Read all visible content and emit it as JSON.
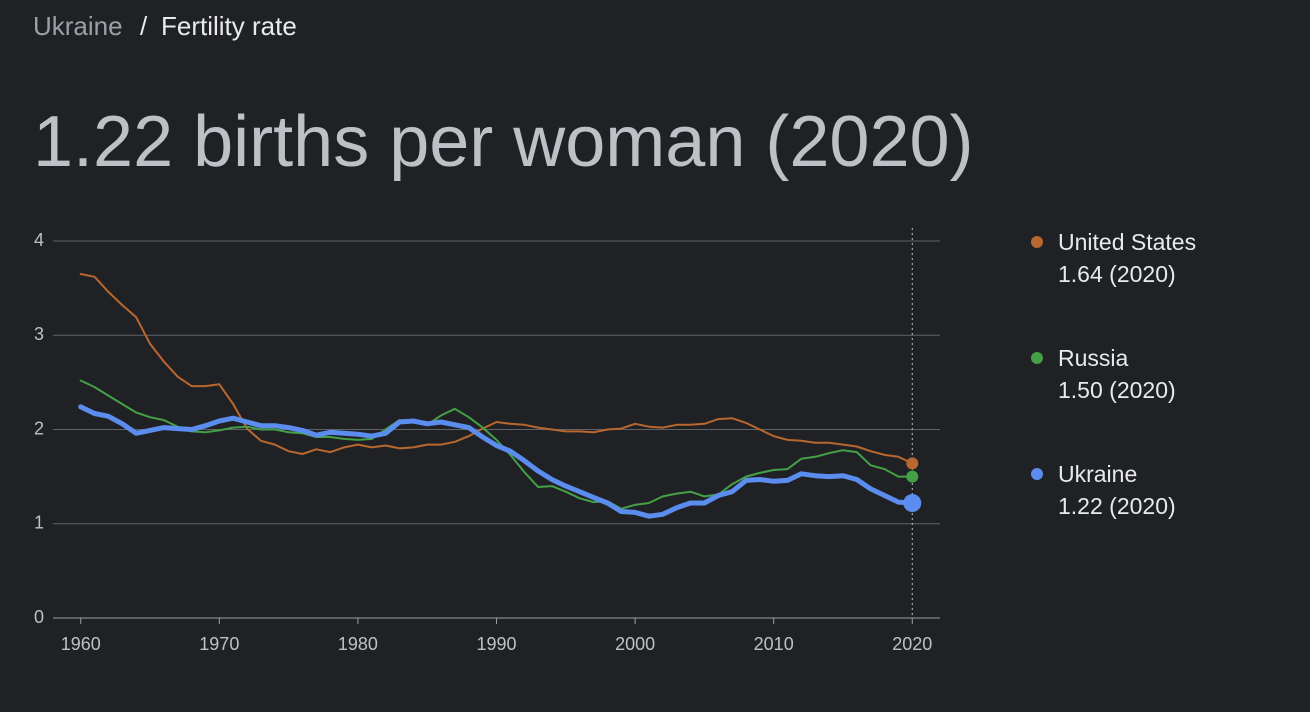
{
  "breadcrumb": [
    "Ukraine",
    "Fertility rate"
  ],
  "breadcrumb_separator": "/",
  "chart_data": {
    "type": "line",
    "title": "1.22 births per woman (2020)",
    "x": [
      1960,
      1961,
      1962,
      1963,
      1964,
      1965,
      1966,
      1967,
      1968,
      1969,
      1970,
      1971,
      1972,
      1973,
      1974,
      1975,
      1976,
      1977,
      1978,
      1979,
      1980,
      1981,
      1982,
      1983,
      1984,
      1985,
      1986,
      1987,
      1988,
      1989,
      1990,
      1991,
      1992,
      1993,
      1994,
      1995,
      1996,
      1997,
      1998,
      1999,
      2000,
      2001,
      2002,
      2003,
      2004,
      2005,
      2006,
      2007,
      2008,
      2009,
      2010,
      2011,
      2012,
      2013,
      2014,
      2015,
      2016,
      2017,
      2018,
      2019,
      2020
    ],
    "series": [
      {
        "name": "United States",
        "color": "#b8672e",
        "width": 2,
        "legend_label": "1.64 (2020)",
        "values": [
          3.65,
          3.62,
          3.46,
          3.32,
          3.19,
          2.91,
          2.72,
          2.56,
          2.46,
          2.46,
          2.48,
          2.27,
          2.01,
          1.88,
          1.84,
          1.77,
          1.74,
          1.79,
          1.76,
          1.81,
          1.84,
          1.81,
          1.83,
          1.8,
          1.81,
          1.84,
          1.84,
          1.87,
          1.93,
          2.01,
          2.08,
          2.06,
          2.05,
          2.02,
          2.0,
          1.98,
          1.98,
          1.97,
          2.0,
          2.01,
          2.06,
          2.03,
          2.02,
          2.05,
          2.05,
          2.06,
          2.11,
          2.12,
          2.07,
          2.0,
          1.93,
          1.89,
          1.88,
          1.86,
          1.86,
          1.84,
          1.82,
          1.77,
          1.73,
          1.71,
          1.64
        ]
      },
      {
        "name": "Russia",
        "color": "#43a047",
        "width": 2,
        "legend_label": "1.50 (2020)",
        "values": [
          2.52,
          2.45,
          2.36,
          2.27,
          2.18,
          2.13,
          2.1,
          2.03,
          1.98,
          1.97,
          1.99,
          2.02,
          2.03,
          2.0,
          2.0,
          1.97,
          1.96,
          1.92,
          1.92,
          1.9,
          1.89,
          1.9,
          2.0,
          2.1,
          2.09,
          2.05,
          2.15,
          2.22,
          2.13,
          2.02,
          1.89,
          1.73,
          1.55,
          1.39,
          1.4,
          1.34,
          1.27,
          1.23,
          1.24,
          1.16,
          1.2,
          1.22,
          1.29,
          1.32,
          1.34,
          1.29,
          1.31,
          1.42,
          1.5,
          1.54,
          1.57,
          1.58,
          1.69,
          1.71,
          1.75,
          1.78,
          1.76,
          1.62,
          1.58,
          1.5,
          1.5
        ]
      },
      {
        "name": "Ukraine",
        "color": "#5b8def",
        "width": 5,
        "legend_label": "1.22 (2020)",
        "values": [
          2.24,
          2.17,
          2.14,
          2.06,
          1.96,
          1.99,
          2.02,
          2.01,
          2.0,
          2.04,
          2.09,
          2.12,
          2.08,
          2.04,
          2.04,
          2.02,
          1.99,
          1.94,
          1.97,
          1.96,
          1.95,
          1.93,
          1.96,
          2.08,
          2.09,
          2.06,
          2.08,
          2.05,
          2.02,
          1.92,
          1.83,
          1.77,
          1.67,
          1.56,
          1.47,
          1.4,
          1.34,
          1.28,
          1.22,
          1.13,
          1.12,
          1.08,
          1.1,
          1.17,
          1.22,
          1.22,
          1.3,
          1.34,
          1.46,
          1.47,
          1.45,
          1.46,
          1.53,
          1.51,
          1.5,
          1.51,
          1.47,
          1.37,
          1.3,
          1.23,
          1.22
        ]
      }
    ],
    "xlim": [
      1958,
      2022
    ],
    "xticks": [
      1960,
      1970,
      1980,
      1990,
      2000,
      2010,
      2020
    ],
    "ylim": [
      0,
      4
    ],
    "yticks": [
      0,
      1,
      2,
      3,
      4
    ],
    "grid": true,
    "hover_x": 2020,
    "legend": "right"
  }
}
